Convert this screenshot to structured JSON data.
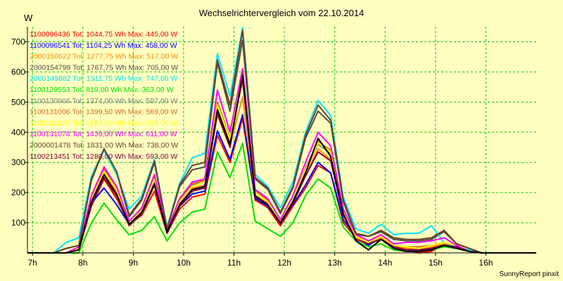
{
  "chart_data": {
    "type": "line",
    "title": "Wechselrichtervergleich vom 22.10.2014",
    "ylabel": "W",
    "xlabel": "",
    "footer": "SunnyReport pinxit",
    "grid": true,
    "legend_position": "top-left",
    "xlim": [
      6.9,
      17.0
    ],
    "ylim": [
      0,
      750
    ],
    "x_ticks": [
      7,
      8,
      9,
      10,
      11,
      12,
      13,
      14,
      15,
      16
    ],
    "x_tick_labels": [
      "7h",
      "8h",
      "9h",
      "10h",
      "11h",
      "12h",
      "13h",
      "14h",
      "15h",
      "16h"
    ],
    "y_ticks": [
      100,
      200,
      300,
      400,
      500,
      600,
      700
    ],
    "y_tick_labels": [
      "100",
      "200",
      "300",
      "400",
      "500",
      "600",
      "700"
    ],
    "x": [
      6.9,
      7.42,
      7.67,
      7.92,
      8.17,
      8.42,
      8.67,
      8.92,
      9.17,
      9.42,
      9.67,
      9.92,
      10.17,
      10.42,
      10.67,
      10.92,
      11.17,
      11.42,
      11.67,
      11.92,
      12.17,
      12.42,
      12.67,
      12.92,
      13.17,
      13.42,
      13.67,
      13.92,
      14.17,
      14.42,
      14.67,
      14.92,
      15.17,
      15.42,
      15.67,
      15.92,
      16.17,
      16.42,
      16.67,
      17.0
    ],
    "series": [
      {
        "name": "1100096436",
        "legend": "1100096436 Tot: 1044,75 Wh Max: 445,00 W",
        "color": "#ff0000",
        "values": [
          0,
          0,
          0,
          10,
          155,
          245,
          180,
          95,
          125,
          205,
          65,
          145,
          185,
          195,
          390,
          300,
          445,
          175,
          150,
          90,
          155,
          215,
          290,
          265,
          100,
          50,
          25,
          60,
          20,
          10,
          0,
          5,
          30,
          20,
          5,
          0,
          0,
          0,
          0,
          0
        ]
      },
      {
        "name": "1100096541",
        "legend": "1100096541 Tot: 1104,25 Wh Max: 458,00 W",
        "color": "#0000ff",
        "values": [
          0,
          0,
          0,
          15,
          165,
          215,
          160,
          95,
          140,
          225,
          75,
          155,
          195,
          205,
          405,
          310,
          458,
          180,
          155,
          100,
          160,
          225,
          300,
          265,
          110,
          55,
          25,
          50,
          25,
          15,
          10,
          15,
          30,
          20,
          5,
          0,
          0,
          0,
          0,
          0
        ]
      },
      {
        "name": "2000150622",
        "legend": "2000150622 Tot: 1277,75 Wh Max: 517,00 W",
        "color": "#ff8c00",
        "values": [
          0,
          0,
          0,
          15,
          180,
          265,
          200,
          100,
          140,
          240,
          70,
          165,
          215,
          225,
          460,
          355,
          517,
          190,
          165,
          105,
          170,
          260,
          345,
          310,
          130,
          50,
          35,
          50,
          20,
          15,
          15,
          20,
          30,
          25,
          5,
          0,
          0,
          0,
          0,
          0
        ]
      },
      {
        "name": "2000154799",
        "legend": "2000154799 Tot: 1767,75 Wh Max: 705,00 W",
        "color": "#4d4d4d",
        "values": [
          0,
          0,
          15,
          25,
          240,
          345,
          265,
          120,
          175,
          300,
          80,
          220,
          275,
          285,
          630,
          470,
          705,
          245,
          210,
          130,
          215,
          380,
          470,
          430,
          170,
          60,
          55,
          70,
          45,
          40,
          40,
          45,
          70,
          30,
          15,
          0,
          0,
          0,
          0,
          0
        ]
      },
      {
        "name": "2000149882",
        "legend": "2000149882 Tot: 1911,75 Wh Max: 747,00 W",
        "color": "#00e5ff",
        "values": [
          0,
          0,
          35,
          50,
          255,
          340,
          260,
          145,
          190,
          310,
          85,
          230,
          315,
          330,
          660,
          520,
          747,
          260,
          220,
          150,
          235,
          400,
          505,
          455,
          185,
          80,
          65,
          95,
          60,
          65,
          65,
          90,
          35,
          20,
          10,
          0,
          0,
          0,
          0,
          0
        ]
      },
      {
        "name": "1100129553",
        "legend": "1100129553 Tot: 819,00 Wh Max: 363,00 W",
        "color": "#00dd00",
        "values": [
          0,
          0,
          0,
          0,
          100,
          165,
          110,
          60,
          75,
          120,
          40,
          100,
          135,
          145,
          335,
          250,
          363,
          105,
          80,
          55,
          100,
          190,
          245,
          215,
          85,
          40,
          20,
          30,
          10,
          5,
          5,
          10,
          20,
          15,
          5,
          0,
          0,
          0,
          0,
          0
        ]
      },
      {
        "name": "1100130966",
        "legend": "1100130966 Tot: 1374,00 Wh Max: 597,00 W",
        "color": "#808080",
        "values": [
          0,
          0,
          0,
          15,
          180,
          275,
          210,
          100,
          140,
          245,
          70,
          170,
          225,
          235,
          485,
          370,
          597,
          200,
          170,
          105,
          180,
          275,
          360,
          330,
          140,
          55,
          35,
          55,
          25,
          20,
          15,
          25,
          35,
          25,
          5,
          0,
          0,
          0,
          0,
          0
        ]
      },
      {
        "name": "1100131006",
        "legend": "1100131006 Tot: 1399,50 Wh Max: 569,00 W",
        "color": "#d2691e",
        "values": [
          0,
          0,
          0,
          15,
          185,
          280,
          215,
          100,
          145,
          250,
          75,
          175,
          230,
          240,
          500,
          380,
          569,
          205,
          175,
          110,
          185,
          280,
          370,
          340,
          145,
          55,
          35,
          55,
          25,
          20,
          20,
          25,
          35,
          25,
          5,
          0,
          0,
          0,
          0,
          0
        ]
      },
      {
        "name": "1100131025",
        "legend": "1100131025 Tot: 1384,00 Wh Max: 599,00 W",
        "color": "#ffff00",
        "values": [
          0,
          0,
          0,
          15,
          180,
          270,
          210,
          100,
          140,
          245,
          70,
          170,
          220,
          235,
          490,
          375,
          599,
          200,
          170,
          105,
          180,
          275,
          365,
          335,
          140,
          55,
          35,
          55,
          25,
          20,
          15,
          25,
          35,
          25,
          5,
          0,
          0,
          0,
          0,
          0
        ]
      },
      {
        "name": "1100131074",
        "legend": "1100131074 Tot: 1439,00 Wh Max: 611,00 W",
        "color": "#ff00ff",
        "values": [
          0,
          0,
          0,
          20,
          190,
          285,
          220,
          105,
          150,
          260,
          75,
          180,
          235,
          245,
          540,
          400,
          611,
          210,
          180,
          110,
          190,
          300,
          400,
          355,
          145,
          60,
          40,
          60,
          30,
          35,
          35,
          40,
          50,
          25,
          5,
          0,
          0,
          0,
          0,
          0
        ]
      },
      {
        "name": "2000001478",
        "legend": "2000001478 Tot: 1831,00 Wh Max: 738,00 W",
        "color": "#6b4226",
        "values": [
          0,
          0,
          15,
          25,
          245,
          345,
          270,
          125,
          180,
          305,
          80,
          225,
          290,
          300,
          640,
          490,
          738,
          250,
          215,
          135,
          220,
          390,
          490,
          440,
          175,
          65,
          55,
          75,
          50,
          45,
          45,
          50,
          75,
          30,
          15,
          0,
          0,
          0,
          0,
          0
        ]
      },
      {
        "name": "1100213451",
        "legend": "1100213451 Tot: 1280,00 Wh Max: 593,00 W",
        "color": "#800040",
        "values": [
          0,
          0,
          0,
          10,
          160,
          250,
          190,
          90,
          130,
          225,
          65,
          155,
          205,
          215,
          460,
          350,
          593,
          185,
          160,
          95,
          165,
          255,
          335,
          305,
          125,
          45,
          30,
          45,
          20,
          10,
          10,
          15,
          25,
          20,
          5,
          0,
          0,
          0,
          0,
          0
        ]
      },
      {
        "name": "",
        "color": "#000000",
        "values": [
          0,
          0,
          0,
          10,
          170,
          260,
          195,
          95,
          135,
          230,
          70,
          160,
          210,
          220,
          475,
          360,
          585,
          190,
          160,
          100,
          170,
          265,
          380,
          320,
          130,
          40,
          10,
          45,
          15,
          5,
          5,
          10,
          25,
          15,
          5,
          0,
          0,
          0,
          0,
          0
        ]
      }
    ]
  }
}
